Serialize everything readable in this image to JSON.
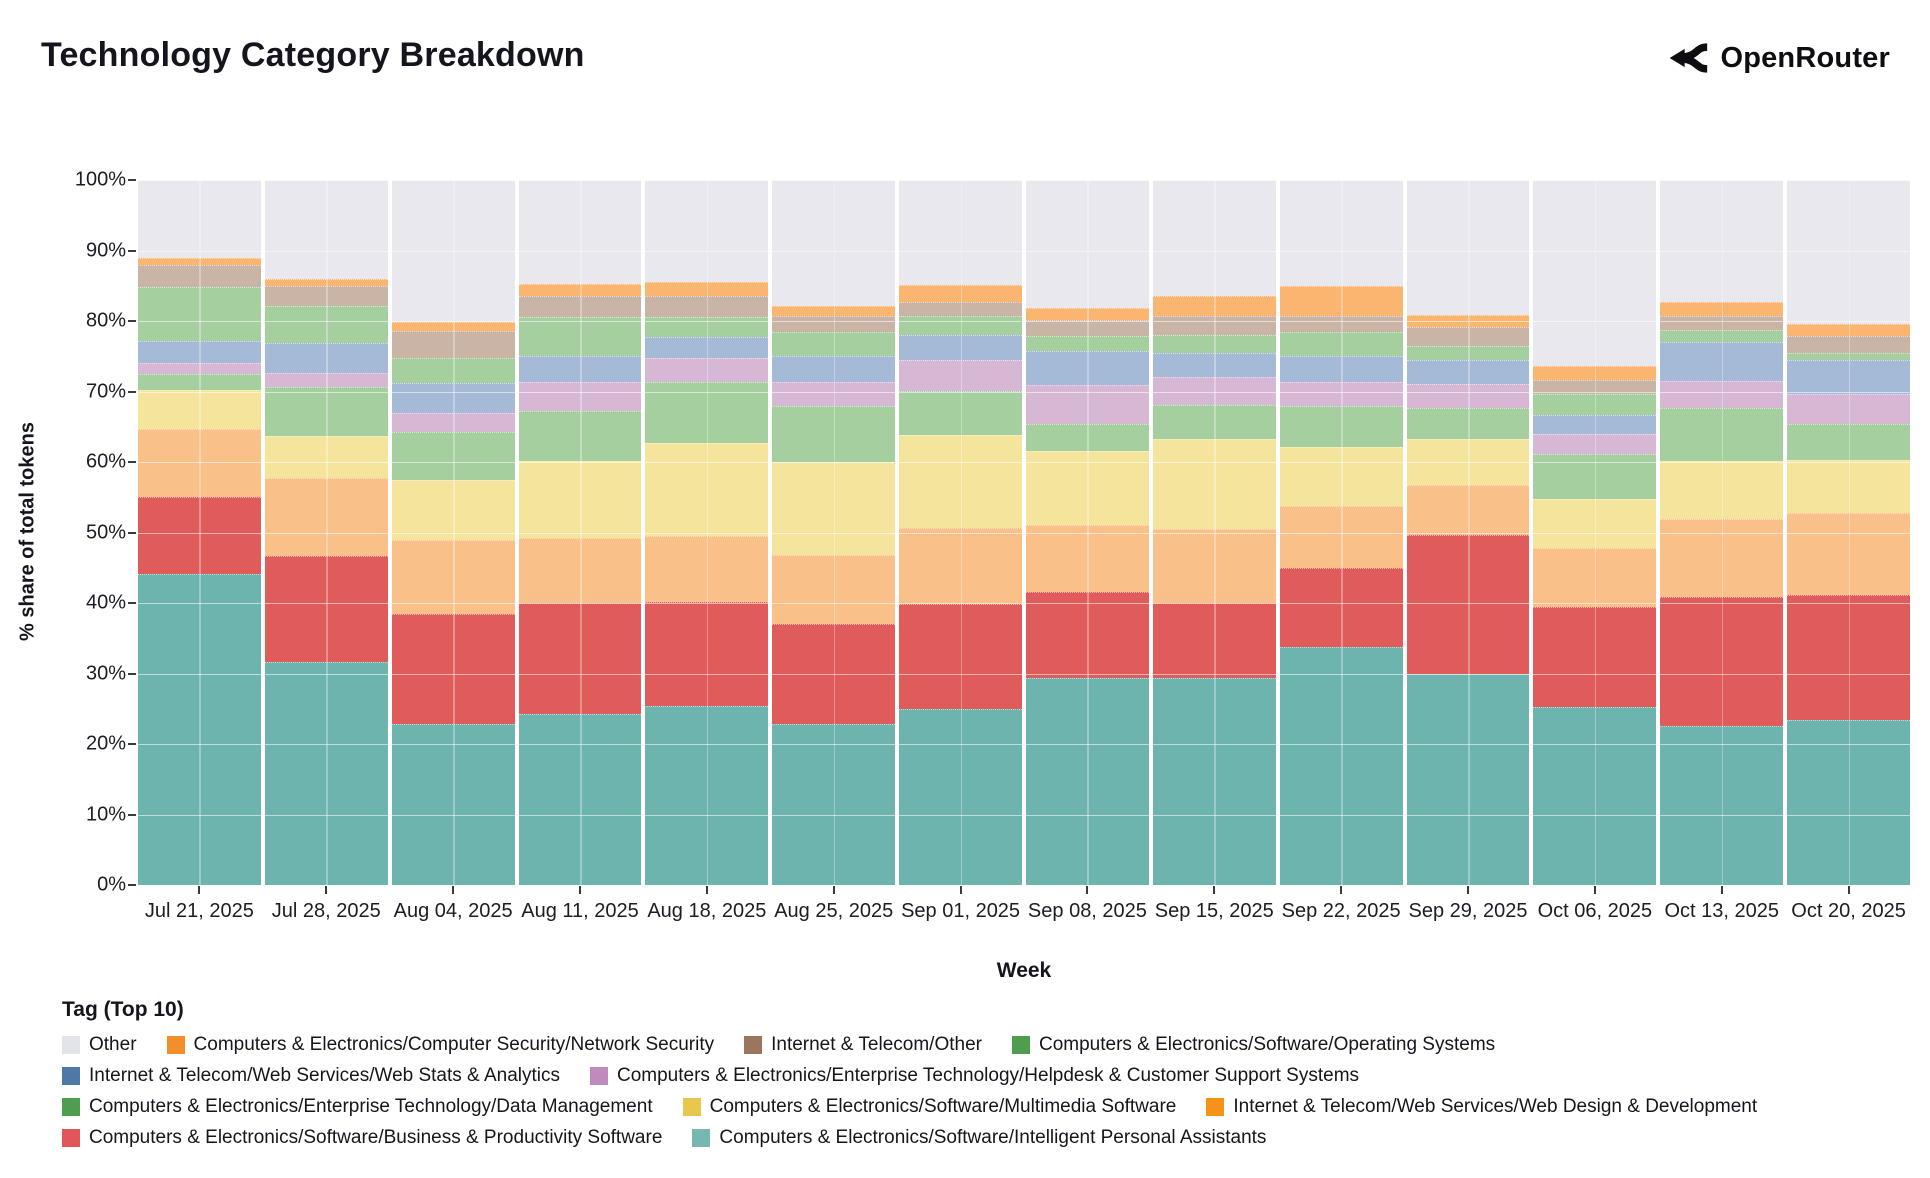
{
  "header": {
    "title": "Technology Category Breakdown",
    "brand": "OpenRouter"
  },
  "legend": {
    "title": "Tag (Top 10)"
  },
  "chart_data": {
    "type": "bar",
    "stacked": true,
    "normalized": "percent",
    "title": "Technology Category Breakdown",
    "xlabel": "Week",
    "ylabel": "% share of total tokens",
    "ylim": [
      0,
      100
    ],
    "ytick_labels": [
      "0%",
      "10%",
      "20%",
      "30%",
      "40%",
      "50%",
      "60%",
      "70%",
      "80%",
      "90%",
      "100%"
    ],
    "grid": "on",
    "legend_position": "bottom",
    "categories": [
      "Jul 21, 2025",
      "Jul 28, 2025",
      "Aug 04, 2025",
      "Aug 11, 2025",
      "Aug 18, 2025",
      "Aug 25, 2025",
      "Sep 01, 2025",
      "Sep 08, 2025",
      "Sep 15, 2025",
      "Sep 22, 2025",
      "Sep 29, 2025",
      "Oct 06, 2025",
      "Oct 13, 2025",
      "Oct 20, 2025"
    ],
    "series": [
      {
        "name": "Other",
        "legend_color": "#e3e3ea",
        "bar_color": "#e8e8ee",
        "pattern": "none",
        "values": [
          11.0,
          14.1,
          20.2,
          14.7,
          14.5,
          17.9,
          14.9,
          18.1,
          16.5,
          15.0,
          19.1,
          26.4,
          17.3,
          20.4
        ]
      },
      {
        "name": "Computers & Electronics/Computer Security/Network Security",
        "legend_color": "#f28e2c",
        "bar_color": "#fab671",
        "pattern": "none",
        "values": [
          1.0,
          0.9,
          1.2,
          1.7,
          2.0,
          1.4,
          2.4,
          1.7,
          2.8,
          4.3,
          1.8,
          2.0,
          2.0,
          1.7
        ]
      },
      {
        "name": "Internet & Telecom/Other",
        "legend_color": "#9c755f",
        "bar_color": "#cab4a5",
        "pattern": "none",
        "values": [
          3.1,
          2.8,
          3.8,
          3.0,
          2.9,
          2.3,
          2.0,
          2.3,
          2.7,
          2.3,
          2.7,
          2.0,
          1.9,
          2.4
        ]
      },
      {
        "name": "Computers & Electronics/Software/Operating Systems",
        "legend_color": "#4f9d4f",
        "bar_color": "#a6cfa0",
        "pattern": "none",
        "values": [
          7.7,
          5.3,
          3.6,
          5.6,
          2.9,
          3.4,
          2.7,
          2.1,
          2.5,
          3.4,
          1.9,
          2.9,
          1.8,
          1.0
        ]
      },
      {
        "name": "Internet & Telecom/Web Services/Web Stats & Analytics",
        "legend_color": "#4e79a7",
        "bar_color": "#a4bad7",
        "pattern": "none",
        "values": [
          3.2,
          4.3,
          4.3,
          3.6,
          2.9,
          3.6,
          3.5,
          4.8,
          3.4,
          3.6,
          3.4,
          2.7,
          5.5,
          4.9
        ]
      },
      {
        "name": "Computers & Electronics/Enterprise Technology/Helpdesk & Customer Support Systems",
        "legend_color": "#bf8bbf",
        "bar_color": "#d7b8d4",
        "pattern": "dots",
        "values": [
          1.5,
          2.0,
          2.6,
          4.1,
          3.4,
          3.4,
          4.4,
          5.6,
          4.0,
          3.4,
          3.5,
          2.8,
          3.9,
          4.2
        ]
      },
      {
        "name": "Computers & Electronics/Enterprise Technology/Data Management",
        "legend_color": "#4f9d4f",
        "bar_color": "#a6cfa0",
        "pattern": "none",
        "values": [
          2.3,
          6.9,
          6.8,
          7.1,
          8.7,
          8.0,
          6.3,
          3.9,
          4.9,
          5.8,
          4.4,
          6.5,
          7.5,
          5.1
        ]
      },
      {
        "name": "Computers & Electronics/Software/Multimedia Software",
        "legend_color": "#e8c84c",
        "bar_color": "#f5e59c",
        "pattern": "none",
        "values": [
          5.5,
          5.9,
          8.5,
          11.0,
          13.2,
          13.2,
          13.1,
          10.5,
          12.7,
          8.5,
          6.4,
          6.9,
          8.2,
          7.6
        ]
      },
      {
        "name": "Internet & Telecom/Web Services/Web Design & Development",
        "legend_color": "#f59318",
        "bar_color": "#f9c189",
        "pattern": "none",
        "values": [
          9.7,
          11.2,
          10.5,
          9.2,
          9.3,
          9.8,
          10.9,
          9.4,
          10.5,
          8.8,
          7.2,
          8.3,
          11.1,
          11.5
        ]
      },
      {
        "name": "Computers & Electronics/Software/Business & Productivity Software",
        "legend_color": "#e15759",
        "bar_color": "#e05c5b",
        "pattern": "none",
        "values": [
          10.9,
          14.9,
          15.7,
          15.8,
          14.8,
          14.2,
          14.9,
          12.3,
          10.6,
          11.2,
          19.7,
          14.2,
          18.3,
          17.8
        ]
      },
      {
        "name": "Computers & Electronics/Software/Intelligent Personal Assistants",
        "legend_color": "#76b7b2",
        "bar_color": "#6eb4ae",
        "pattern": "none",
        "values": [
          44.1,
          31.7,
          22.8,
          24.2,
          25.4,
          22.8,
          24.9,
          29.3,
          29.4,
          33.7,
          29.9,
          25.3,
          22.5,
          23.4
        ]
      }
    ]
  }
}
